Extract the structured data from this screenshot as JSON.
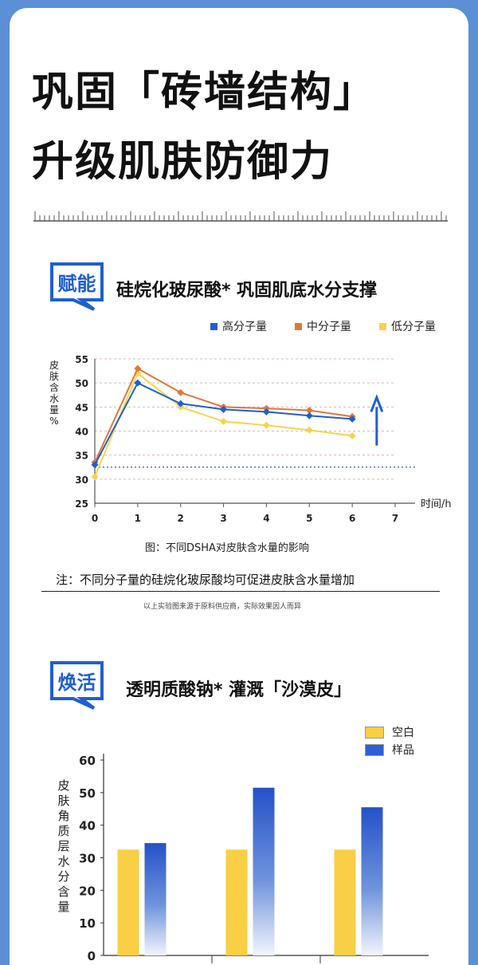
{
  "title": {
    "line1": "巩固「砖墙结构」",
    "line2": "升级肌肤防御力"
  },
  "section1": {
    "badge": "赋能",
    "heading": "硅烷化玻尿酸* 巩固肌底水分支撑",
    "caption": "图：不同DSHA对皮肤含水量的影响",
    "note": "注：不同分子量的硅烷化玻尿酸均可促进皮肤含水量增加",
    "small_note": "以上实验图来源于原料供应商，实际效果因人而异"
  },
  "section2": {
    "badge": "焕活",
    "heading": "透明质酸钠* 灌溉「沙漠皮」"
  },
  "colors": {
    "blue": "#1f5fd0",
    "orange": "#e0773a",
    "yellow": "#f7d44c",
    "bar_yellow": "#f8cf45",
    "bar_blue": "#2f5fd2"
  },
  "chart_data": [
    {
      "type": "line",
      "title": "",
      "xlabel": "时间/h",
      "ylabel": "皮肤含水量%",
      "x": [
        0,
        1,
        2,
        3,
        4,
        5,
        6
      ],
      "x_ticks": [
        "0",
        "1",
        "2",
        "3",
        "4",
        "5",
        "6",
        "7"
      ],
      "y_ticks": [
        "25",
        "30",
        "35",
        "40",
        "45",
        "50",
        "55"
      ],
      "xlim": [
        0,
        7
      ],
      "ylim": [
        25,
        55
      ],
      "baseline": 32.5,
      "grid": true,
      "legend_position": "top-right",
      "series": [
        {
          "name": "高分子量",
          "color": "#1f5fd0",
          "values": [
            33,
            50,
            45.7,
            44.5,
            44,
            43.2,
            42.5
          ]
        },
        {
          "name": "中分子量",
          "color": "#e0773a",
          "values": [
            33.5,
            53,
            48,
            45,
            44.7,
            44.3,
            43
          ]
        },
        {
          "name": "低分子量",
          "color": "#f7d44c",
          "values": [
            30.5,
            52,
            45,
            42,
            41.2,
            40.2,
            39
          ]
        }
      ]
    },
    {
      "type": "bar",
      "title": "",
      "ylabel": "皮肤角质层水分含量",
      "categories": [
        "",
        "",
        ""
      ],
      "y_ticks": [
        "0",
        "10",
        "20",
        "30",
        "40",
        "50",
        "60"
      ],
      "ylim": [
        0,
        60
      ],
      "legend_position": "top-right",
      "series": [
        {
          "name": "空白",
          "color": "#f8cf45",
          "values": [
            32.5,
            32.5,
            32.5
          ]
        },
        {
          "name": "样品",
          "color": "#2f5fd2",
          "values": [
            34.5,
            51.5,
            45.5
          ]
        }
      ]
    }
  ]
}
